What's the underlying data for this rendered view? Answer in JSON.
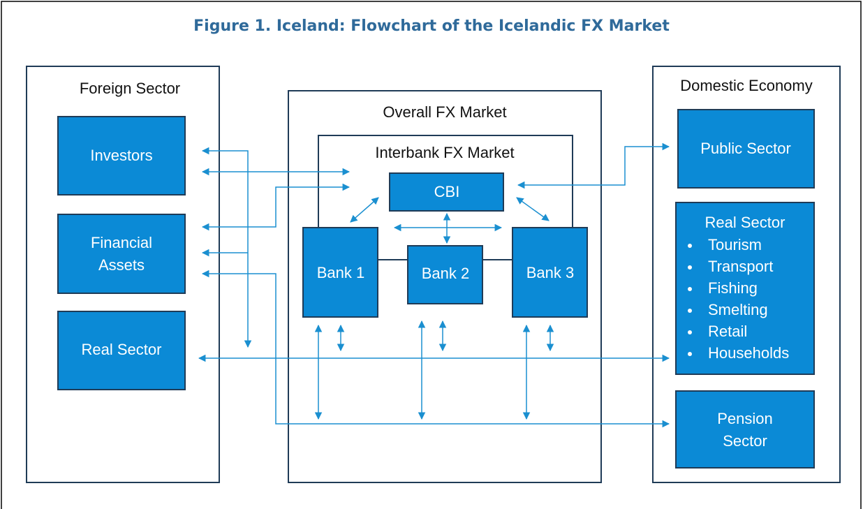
{
  "title": "Figure 1. Iceland: Flowchart of the Icelandic FX Market",
  "panels": {
    "foreign": "Foreign Sector",
    "overall": "Overall FX Market",
    "interbank": "Interbank FX Market",
    "domestic": "Domestic Economy"
  },
  "nodes": {
    "investors": "Investors",
    "financial_assets": [
      "Financial",
      "Assets"
    ],
    "foreign_real": "Real Sector",
    "cbi": "CBI",
    "bank1": "Bank 1",
    "bank2": "Bank 2",
    "bank3": "Bank 3",
    "public": "Public Sector",
    "domestic_real": {
      "label": "Real Sector",
      "items": [
        "Tourism",
        "Transport",
        "Fishing",
        "Smelting",
        "Retail",
        "Households"
      ]
    },
    "pension": [
      "Pension",
      "Sector"
    ]
  }
}
